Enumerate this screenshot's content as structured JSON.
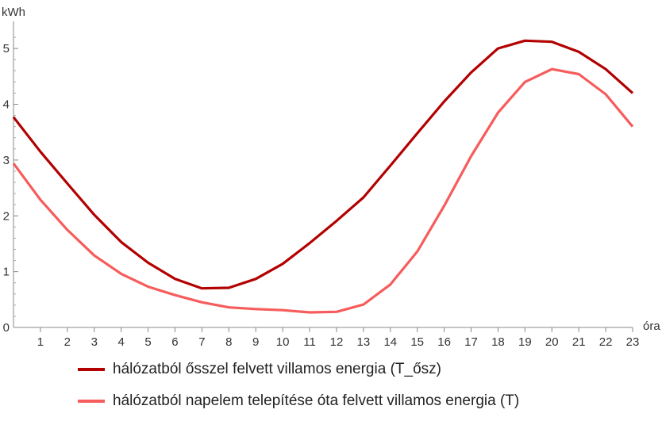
{
  "chart_data": {
    "type": "line",
    "xlabel": "óra",
    "ylabel": "kWh",
    "x": [
      0,
      1,
      2,
      3,
      4,
      5,
      6,
      7,
      8,
      9,
      10,
      11,
      12,
      13,
      14,
      15,
      16,
      17,
      18,
      19,
      20,
      21,
      22,
      23
    ],
    "xlim": [
      0,
      23
    ],
    "ylim": [
      0,
      5.4
    ],
    "xticks": [
      "1",
      "2",
      "3",
      "4",
      "5",
      "6",
      "7",
      "8",
      "9",
      "10",
      "11",
      "12",
      "13",
      "14",
      "15",
      "16",
      "17",
      "18",
      "19",
      "20",
      "21",
      "22",
      "23"
    ],
    "yticks": [
      "0",
      "1",
      "2",
      "3",
      "4",
      "5"
    ],
    "grid": false,
    "legend_position": "bottom",
    "series": [
      {
        "name": "hálózatból ősszel felvett villamos energia (T_ősz)",
        "color": "#b30000",
        "values": [
          3.77,
          3.15,
          2.58,
          2.02,
          1.53,
          1.16,
          0.87,
          0.7,
          0.71,
          0.87,
          1.14,
          1.51,
          1.91,
          2.33,
          2.9,
          3.48,
          4.05,
          4.57,
          5.0,
          5.14,
          5.12,
          4.94,
          4.63,
          4.2
        ]
      },
      {
        "name": "hálózatból napelem telepítése óta felvett villamos energia (T)",
        "color": "#f75c5c",
        "values": [
          2.94,
          2.29,
          1.75,
          1.29,
          0.96,
          0.73,
          0.58,
          0.45,
          0.36,
          0.33,
          0.31,
          0.27,
          0.28,
          0.41,
          0.77,
          1.36,
          2.18,
          3.07,
          3.85,
          4.4,
          4.63,
          4.54,
          4.18,
          3.6
        ]
      }
    ]
  }
}
